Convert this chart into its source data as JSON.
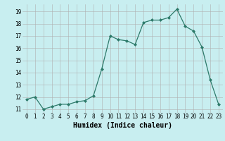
{
  "x": [
    0,
    1,
    2,
    3,
    4,
    5,
    6,
    7,
    8,
    9,
    10,
    11,
    12,
    13,
    14,
    15,
    16,
    17,
    18,
    19,
    20,
    21,
    22,
    23
  ],
  "y": [
    11.8,
    12.0,
    11.0,
    11.2,
    11.4,
    11.4,
    11.6,
    11.7,
    12.1,
    14.3,
    17.0,
    16.7,
    16.6,
    16.3,
    18.1,
    18.3,
    18.3,
    18.5,
    19.2,
    17.8,
    17.4,
    16.1,
    13.4,
    11.4
  ],
  "line_color": "#2d7a6a",
  "marker": "D",
  "marker_size": 2.0,
  "bg_color": "#c8eef0",
  "grid_color": "#b0b0b0",
  "xlabel": "Humidex (Indice chaleur)",
  "xlabel_fontsize": 7,
  "ylim": [
    10.7,
    19.6
  ],
  "xlim": [
    -0.5,
    23.5
  ],
  "yticks": [
    11,
    12,
    13,
    14,
    15,
    16,
    17,
    18,
    19
  ],
  "xticks": [
    0,
    1,
    2,
    3,
    4,
    5,
    6,
    7,
    8,
    9,
    10,
    11,
    12,
    13,
    14,
    15,
    16,
    17,
    18,
    19,
    20,
    21,
    22,
    23
  ],
  "tick_fontsize": 5.5
}
